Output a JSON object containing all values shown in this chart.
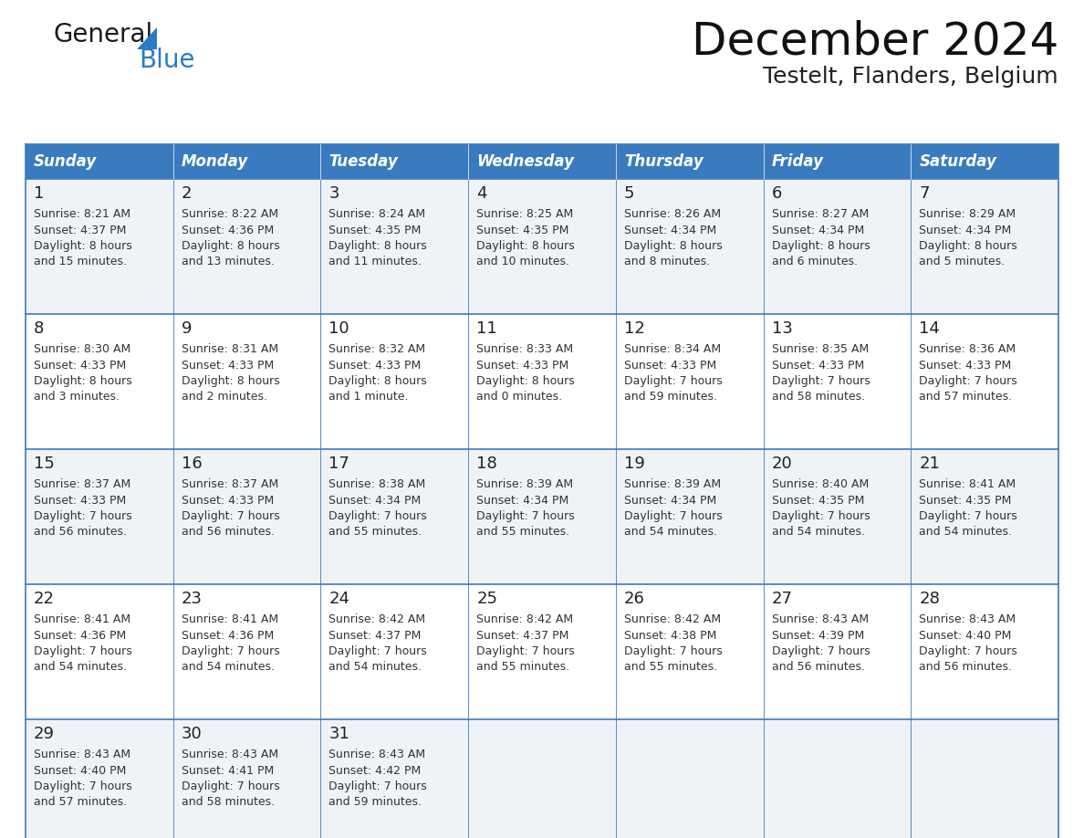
{
  "title": "December 2024",
  "subtitle": "Testelt, Flanders, Belgium",
  "header_bg_color": "#3a7bbf",
  "header_text_color": "#ffffff",
  "cell_bg_light": "#eff3f8",
  "cell_bg_white": "#ffffff",
  "cell_text_color": "#333333",
  "grid_color": "#3a7bbf",
  "days_of_week": [
    "Sunday",
    "Monday",
    "Tuesday",
    "Wednesday",
    "Thursday",
    "Friday",
    "Saturday"
  ],
  "weeks": [
    [
      {
        "day": 1,
        "sunrise": "8:21 AM",
        "sunset": "4:37 PM",
        "daylight_hours": 8,
        "daylight_minutes": 15
      },
      {
        "day": 2,
        "sunrise": "8:22 AM",
        "sunset": "4:36 PM",
        "daylight_hours": 8,
        "daylight_minutes": 13
      },
      {
        "day": 3,
        "sunrise": "8:24 AM",
        "sunset": "4:35 PM",
        "daylight_hours": 8,
        "daylight_minutes": 11
      },
      {
        "day": 4,
        "sunrise": "8:25 AM",
        "sunset": "4:35 PM",
        "daylight_hours": 8,
        "daylight_minutes": 10
      },
      {
        "day": 5,
        "sunrise": "8:26 AM",
        "sunset": "4:34 PM",
        "daylight_hours": 8,
        "daylight_minutes": 8
      },
      {
        "day": 6,
        "sunrise": "8:27 AM",
        "sunset": "4:34 PM",
        "daylight_hours": 8,
        "daylight_minutes": 6
      },
      {
        "day": 7,
        "sunrise": "8:29 AM",
        "sunset": "4:34 PM",
        "daylight_hours": 8,
        "daylight_minutes": 5
      }
    ],
    [
      {
        "day": 8,
        "sunrise": "8:30 AM",
        "sunset": "4:33 PM",
        "daylight_hours": 8,
        "daylight_minutes": 3
      },
      {
        "day": 9,
        "sunrise": "8:31 AM",
        "sunset": "4:33 PM",
        "daylight_hours": 8,
        "daylight_minutes": 2
      },
      {
        "day": 10,
        "sunrise": "8:32 AM",
        "sunset": "4:33 PM",
        "daylight_hours": 8,
        "daylight_minutes": 1
      },
      {
        "day": 11,
        "sunrise": "8:33 AM",
        "sunset": "4:33 PM",
        "daylight_hours": 8,
        "daylight_minutes": 0
      },
      {
        "day": 12,
        "sunrise": "8:34 AM",
        "sunset": "4:33 PM",
        "daylight_hours": 7,
        "daylight_minutes": 59
      },
      {
        "day": 13,
        "sunrise": "8:35 AM",
        "sunset": "4:33 PM",
        "daylight_hours": 7,
        "daylight_minutes": 58
      },
      {
        "day": 14,
        "sunrise": "8:36 AM",
        "sunset": "4:33 PM",
        "daylight_hours": 7,
        "daylight_minutes": 57
      }
    ],
    [
      {
        "day": 15,
        "sunrise": "8:37 AM",
        "sunset": "4:33 PM",
        "daylight_hours": 7,
        "daylight_minutes": 56
      },
      {
        "day": 16,
        "sunrise": "8:37 AM",
        "sunset": "4:33 PM",
        "daylight_hours": 7,
        "daylight_minutes": 56
      },
      {
        "day": 17,
        "sunrise": "8:38 AM",
        "sunset": "4:34 PM",
        "daylight_hours": 7,
        "daylight_minutes": 55
      },
      {
        "day": 18,
        "sunrise": "8:39 AM",
        "sunset": "4:34 PM",
        "daylight_hours": 7,
        "daylight_minutes": 55
      },
      {
        "day": 19,
        "sunrise": "8:39 AM",
        "sunset": "4:34 PM",
        "daylight_hours": 7,
        "daylight_minutes": 54
      },
      {
        "day": 20,
        "sunrise": "8:40 AM",
        "sunset": "4:35 PM",
        "daylight_hours": 7,
        "daylight_minutes": 54
      },
      {
        "day": 21,
        "sunrise": "8:41 AM",
        "sunset": "4:35 PM",
        "daylight_hours": 7,
        "daylight_minutes": 54
      }
    ],
    [
      {
        "day": 22,
        "sunrise": "8:41 AM",
        "sunset": "4:36 PM",
        "daylight_hours": 7,
        "daylight_minutes": 54
      },
      {
        "day": 23,
        "sunrise": "8:41 AM",
        "sunset": "4:36 PM",
        "daylight_hours": 7,
        "daylight_minutes": 54
      },
      {
        "day": 24,
        "sunrise": "8:42 AM",
        "sunset": "4:37 PM",
        "daylight_hours": 7,
        "daylight_minutes": 54
      },
      {
        "day": 25,
        "sunrise": "8:42 AM",
        "sunset": "4:37 PM",
        "daylight_hours": 7,
        "daylight_minutes": 55
      },
      {
        "day": 26,
        "sunrise": "8:42 AM",
        "sunset": "4:38 PM",
        "daylight_hours": 7,
        "daylight_minutes": 55
      },
      {
        "day": 27,
        "sunrise": "8:43 AM",
        "sunset": "4:39 PM",
        "daylight_hours": 7,
        "daylight_minutes": 56
      },
      {
        "day": 28,
        "sunrise": "8:43 AM",
        "sunset": "4:40 PM",
        "daylight_hours": 7,
        "daylight_minutes": 56
      }
    ],
    [
      {
        "day": 29,
        "sunrise": "8:43 AM",
        "sunset": "4:40 PM",
        "daylight_hours": 7,
        "daylight_minutes": 57
      },
      {
        "day": 30,
        "sunrise": "8:43 AM",
        "sunset": "4:41 PM",
        "daylight_hours": 7,
        "daylight_minutes": 58
      },
      {
        "day": 31,
        "sunrise": "8:43 AM",
        "sunset": "4:42 PM",
        "daylight_hours": 7,
        "daylight_minutes": 59
      },
      null,
      null,
      null,
      null
    ]
  ],
  "logo_general_color": "#1a1a1a",
  "logo_blue_color": "#2a7ac8",
  "logo_triangle_color": "#2a7ac8",
  "title_fontsize": 36,
  "subtitle_fontsize": 18,
  "header_fontsize": 12,
  "day_number_fontsize": 13,
  "cell_text_fontsize": 9
}
